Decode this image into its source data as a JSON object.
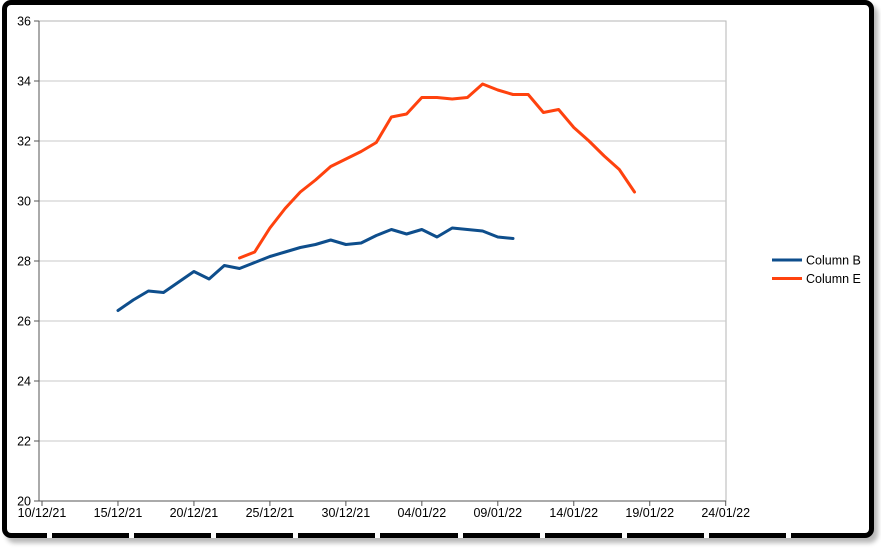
{
  "chart_data": {
    "type": "line",
    "title": "",
    "grid": "horizontal",
    "legend_position": "right",
    "x_axis": {
      "tick_labels": [
        "10/12/21",
        "15/12/21",
        "20/12/21",
        "25/12/21",
        "30/12/21",
        "04/01/22",
        "09/01/22",
        "14/01/22",
        "19/01/22",
        "24/01/22"
      ],
      "tick_day_offsets": [
        0,
        5,
        10,
        15,
        20,
        25,
        30,
        35,
        40,
        45
      ]
    },
    "y_axis": {
      "min": 20,
      "max": 36,
      "step": 2,
      "tick_labels": [
        "20",
        "22",
        "24",
        "26",
        "28",
        "30",
        "32",
        "34",
        "36"
      ]
    },
    "colors": {
      "grid_line": "#c9c9c9",
      "plot_border": "#b5b5b5",
      "axis_line": "#555555",
      "frame": "#000000"
    },
    "series": [
      {
        "name": "Column B",
        "color": "#0e4e8c",
        "dates": [
          "15/12/21",
          "16/12/21",
          "17/12/21",
          "18/12/21",
          "19/12/21",
          "20/12/21",
          "21/12/21",
          "22/12/21",
          "23/12/21",
          "24/12/21",
          "25/12/21",
          "26/12/21",
          "27/12/21",
          "28/12/21",
          "29/12/21",
          "30/12/21",
          "31/12/21",
          "01/01/22",
          "02/01/22",
          "03/01/22",
          "04/01/22",
          "05/01/22",
          "06/01/22",
          "07/01/22",
          "08/01/22",
          "09/01/22",
          "10/01/22"
        ],
        "values": [
          26.35,
          26.7,
          27.0,
          26.95,
          27.3,
          27.65,
          27.4,
          27.85,
          27.75,
          27.95,
          28.15,
          28.3,
          28.45,
          28.55,
          28.7,
          28.55,
          28.6,
          28.85,
          29.05,
          28.9,
          29.05,
          28.8,
          29.1,
          29.05,
          29.0,
          28.8,
          28.75
        ]
      },
      {
        "name": "Column E",
        "color": "#ff420e",
        "dates": [
          "23/12/21",
          "24/12/21",
          "25/12/21",
          "26/12/21",
          "27/12/21",
          "28/12/21",
          "29/12/21",
          "30/12/21",
          "31/12/21",
          "01/01/22",
          "02/01/22",
          "03/01/22",
          "04/01/22",
          "05/01/22",
          "06/01/22",
          "07/01/22",
          "08/01/22",
          "09/01/22",
          "10/01/22",
          "11/01/22",
          "12/01/22",
          "13/01/22",
          "14/01/22",
          "15/01/22",
          "16/01/22",
          "17/01/22",
          "18/01/22"
        ],
        "values": [
          28.1,
          28.3,
          29.1,
          29.75,
          30.3,
          30.7,
          31.15,
          31.4,
          31.65,
          31.95,
          32.8,
          32.9,
          33.45,
          33.45,
          33.4,
          33.45,
          33.9,
          33.7,
          33.55,
          33.55,
          32.95,
          33.05,
          32.45,
          32.0,
          31.5,
          31.05,
          30.3
        ]
      }
    ],
    "legend": {
      "items": [
        "Column B",
        "Column E"
      ]
    }
  }
}
